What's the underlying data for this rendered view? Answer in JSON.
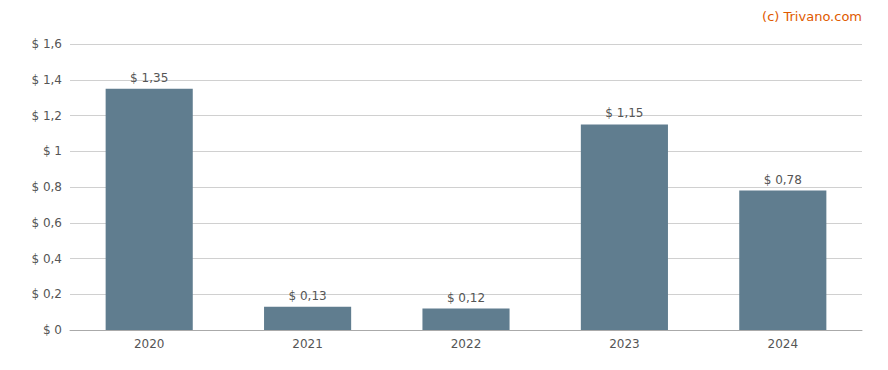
{
  "chart_data": {
    "type": "bar",
    "categories": [
      "2020",
      "2021",
      "2022",
      "2023",
      "2024"
    ],
    "values": [
      1.35,
      0.13,
      0.12,
      1.15,
      0.78
    ],
    "value_labels": [
      "$ 1,35",
      "$ 0,13",
      "$ 0,12",
      "$ 1,15",
      "$ 0,78"
    ],
    "data_labels": true,
    "color": "#607d8f",
    "ylim": [
      0,
      1.6
    ],
    "yticks": [
      {
        "value": 0,
        "label": "$ 0"
      },
      {
        "value": 0.2,
        "label": "$ 0,2"
      },
      {
        "value": 0.4,
        "label": "$ 0,4"
      },
      {
        "value": 0.6,
        "label": "$ 0,6"
      },
      {
        "value": 0.8,
        "label": "$ 0,8"
      },
      {
        "value": 1.0,
        "label": "$ 1"
      },
      {
        "value": 1.2,
        "label": "$ 1,2"
      },
      {
        "value": 1.4,
        "label": "$ 1,4"
      },
      {
        "value": 1.6,
        "label": "$ 1,6"
      }
    ],
    "grid": true,
    "annotations": [
      {
        "text": "(c) Trivano.com",
        "color": "#e05a00"
      }
    ]
  }
}
